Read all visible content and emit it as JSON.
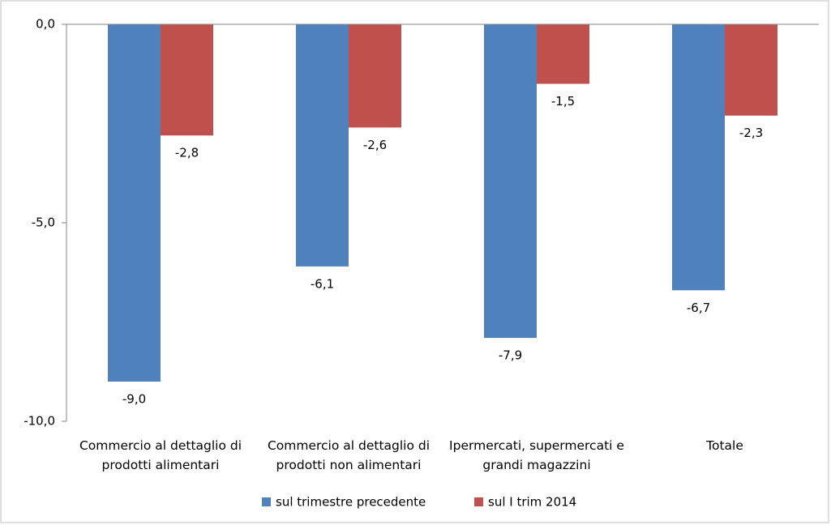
{
  "chart_data": {
    "type": "bar",
    "categories": [
      "Commercio al dettaglio di prodotti alimentari",
      "Commercio al dettaglio di prodotti non alimentari",
      "Ipermercati, supermercati e grandi magazzini",
      "Totale"
    ],
    "series": [
      {
        "name": "sul trimestre precedente",
        "color": "#4f81bd",
        "values": [
          -9.0,
          -6.1,
          -7.9,
          -6.7
        ],
        "value_labels": [
          "-9,0",
          "-6,1",
          "-7,9",
          "-6,7"
        ]
      },
      {
        "name": "sul I trim 2014",
        "color": "#c0504d",
        "values": [
          -2.8,
          -2.6,
          -1.5,
          -2.3
        ],
        "value_labels": [
          "-2,8",
          "-2,6",
          "-1,5",
          "-2,3"
        ]
      }
    ],
    "ylim": [
      -10,
      0
    ],
    "yticks": [
      {
        "value": 0,
        "label": "0,0"
      },
      {
        "value": -5,
        "label": "-5,0"
      },
      {
        "value": -10,
        "label": "-10,0"
      }
    ],
    "grid": false,
    "legend": "bottom"
  }
}
